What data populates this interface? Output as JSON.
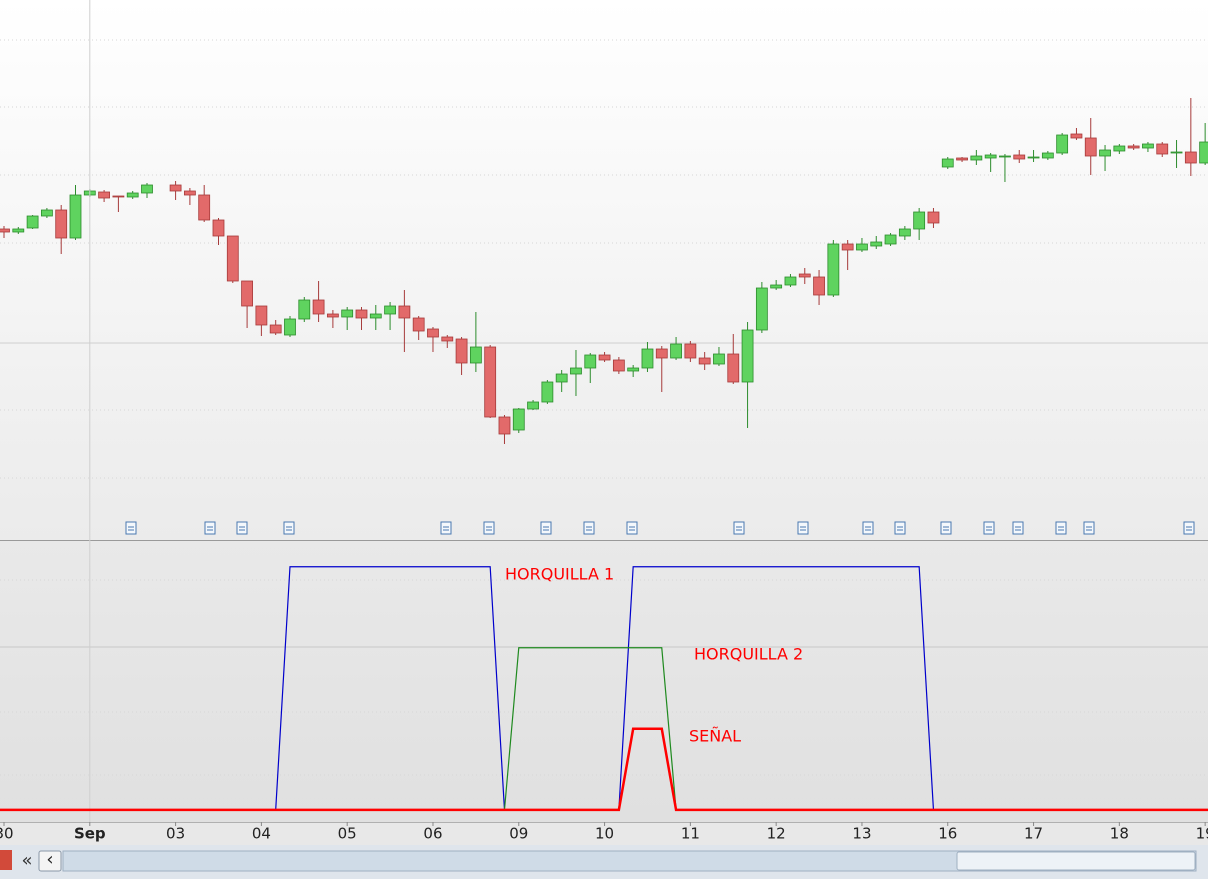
{
  "chart_data": [
    {
      "type": "candlestick",
      "up_color": "#5fd35f",
      "down_color": "#e26a6a",
      "xlim": [
        -0.28,
        84.2
      ],
      "ylim": [
        0,
        540
      ],
      "x": [
        0,
        1,
        2,
        3,
        4,
        5,
        6,
        7,
        8,
        9,
        10,
        12,
        13,
        14,
        15,
        16,
        17,
        18,
        19,
        20,
        21,
        22,
        23,
        24,
        25,
        26,
        27,
        28,
        29,
        30,
        31,
        32,
        33,
        34,
        35,
        36,
        37,
        38,
        39,
        40,
        41,
        42,
        43,
        44,
        45,
        46,
        47,
        48,
        49,
        50,
        51,
        52,
        53,
        54,
        55,
        56,
        57,
        58,
        59,
        60,
        61,
        62,
        63,
        64,
        65,
        66,
        67,
        68,
        69,
        70,
        71,
        72,
        73,
        74,
        75,
        76,
        77,
        78,
        79,
        80,
        81,
        82,
        83,
        84
      ],
      "open": [
        311,
        308,
        312,
        324,
        330,
        302,
        345,
        348,
        344,
        343,
        347,
        355,
        349,
        345,
        320,
        304,
        259,
        234,
        215,
        205,
        221,
        240,
        226,
        223,
        230,
        222,
        226,
        234,
        222,
        211,
        203,
        201,
        177,
        193,
        123,
        110,
        131,
        138,
        158,
        166,
        172,
        185,
        180,
        169,
        172,
        191,
        182,
        196,
        182,
        176,
        186,
        158,
        210,
        252,
        255,
        266,
        263,
        245,
        296,
        290,
        294,
        296,
        304,
        311,
        328,
        373,
        382,
        380,
        382,
        383,
        385,
        382,
        382,
        387,
        406,
        402,
        384,
        389,
        394,
        392,
        396,
        387,
        388,
        377
      ],
      "high": [
        314,
        313,
        325,
        332,
        335,
        355,
        351,
        350,
        344,
        349,
        357,
        359,
        352,
        355,
        322,
        304,
        259,
        234,
        220,
        224,
        243,
        259,
        230,
        233,
        233,
        235,
        238,
        250,
        224,
        213,
        205,
        203,
        228,
        195,
        125,
        132,
        140,
        160,
        170,
        190,
        187,
        188,
        183,
        175,
        198,
        194,
        203,
        199,
        188,
        193,
        206,
        218,
        258,
        260,
        266,
        272,
        270,
        300,
        300,
        302,
        304,
        307,
        314,
        332,
        332,
        383,
        383,
        390,
        387,
        386,
        390,
        390,
        389,
        407,
        412,
        422,
        395,
        396,
        396,
        398,
        398,
        400,
        442,
        417
      ],
      "low": [
        302,
        306,
        311,
        322,
        286,
        300,
        343,
        338,
        328,
        341,
        342,
        340,
        335,
        318,
        295,
        257,
        212,
        204,
        205,
        203,
        218,
        218,
        212,
        210,
        210,
        210,
        210,
        188,
        200,
        188,
        192,
        165,
        168,
        122,
        96,
        107,
        130,
        136,
        148,
        144,
        157,
        178,
        166,
        163,
        168,
        148,
        180,
        178,
        170,
        174,
        156,
        112,
        207,
        250,
        253,
        256,
        235,
        243,
        270,
        288,
        291,
        294,
        300,
        300,
        312,
        371,
        378,
        375,
        368,
        358,
        377,
        378,
        380,
        385,
        400,
        365,
        369,
        386,
        390,
        388,
        383,
        372,
        364,
        375
      ],
      "close": [
        308,
        311,
        324,
        330,
        302,
        345,
        349,
        342,
        343,
        347,
        355,
        349,
        345,
        320,
        304,
        259,
        234,
        215,
        207,
        221,
        240,
        226,
        223,
        230,
        222,
        226,
        234,
        222,
        209,
        203,
        199,
        177,
        193,
        123,
        106,
        131,
        138,
        158,
        166,
        172,
        185,
        180,
        169,
        172,
        191,
        182,
        196,
        182,
        176,
        186,
        158,
        210,
        252,
        255,
        263,
        263,
        245,
        296,
        290,
        296,
        298,
        305,
        311,
        328,
        317,
        381,
        380,
        384,
        385,
        384,
        381,
        383,
        387,
        405,
        402,
        384,
        390,
        394,
        392,
        396,
        386,
        388,
        377,
        398
      ]
    },
    {
      "type": "line",
      "xlim": [
        -0.28,
        84.2
      ],
      "ylim": [
        -0.15,
        3.33
      ],
      "xticks": [
        {
          "value": 0,
          "label": "30"
        },
        {
          "value": 6,
          "label": "Sep"
        },
        {
          "value": 12,
          "label": "03"
        },
        {
          "value": 18,
          "label": "04"
        },
        {
          "value": 24,
          "label": "05"
        },
        {
          "value": 30,
          "label": "06"
        },
        {
          "value": 36,
          "label": "09"
        },
        {
          "value": 42,
          "label": "10"
        },
        {
          "value": 48,
          "label": "11"
        },
        {
          "value": 54,
          "label": "12"
        },
        {
          "value": 60,
          "label": "13"
        },
        {
          "value": 66,
          "label": "16"
        },
        {
          "value": 72,
          "label": "17"
        },
        {
          "value": 78,
          "label": "18"
        },
        {
          "value": 84,
          "label": "19"
        }
      ],
      "series": [
        {
          "name": "HORQUILLA 1",
          "color": "#0000cc",
          "x": [
            -0.28,
            19,
            20,
            34,
            35,
            43,
            44,
            64,
            65,
            84.2
          ],
          "values": [
            0,
            0,
            3,
            3,
            0,
            0,
            3,
            3,
            0,
            0
          ]
        },
        {
          "name": "HORQUILLA 2",
          "color": "#1f8a1f",
          "x": [
            -0.28,
            35,
            36,
            46,
            47,
            84.2
          ],
          "values": [
            0,
            0,
            2,
            2,
            0,
            0
          ]
        },
        {
          "name": "SEÑAL",
          "color": "#ff0000",
          "x": [
            -0.28,
            43,
            44,
            46,
            47,
            84.2
          ],
          "values": [
            0,
            0,
            1,
            1,
            0,
            0
          ]
        }
      ]
    }
  ],
  "toolbar": {
    "collapse": "«",
    "scroll_left": "‹"
  }
}
